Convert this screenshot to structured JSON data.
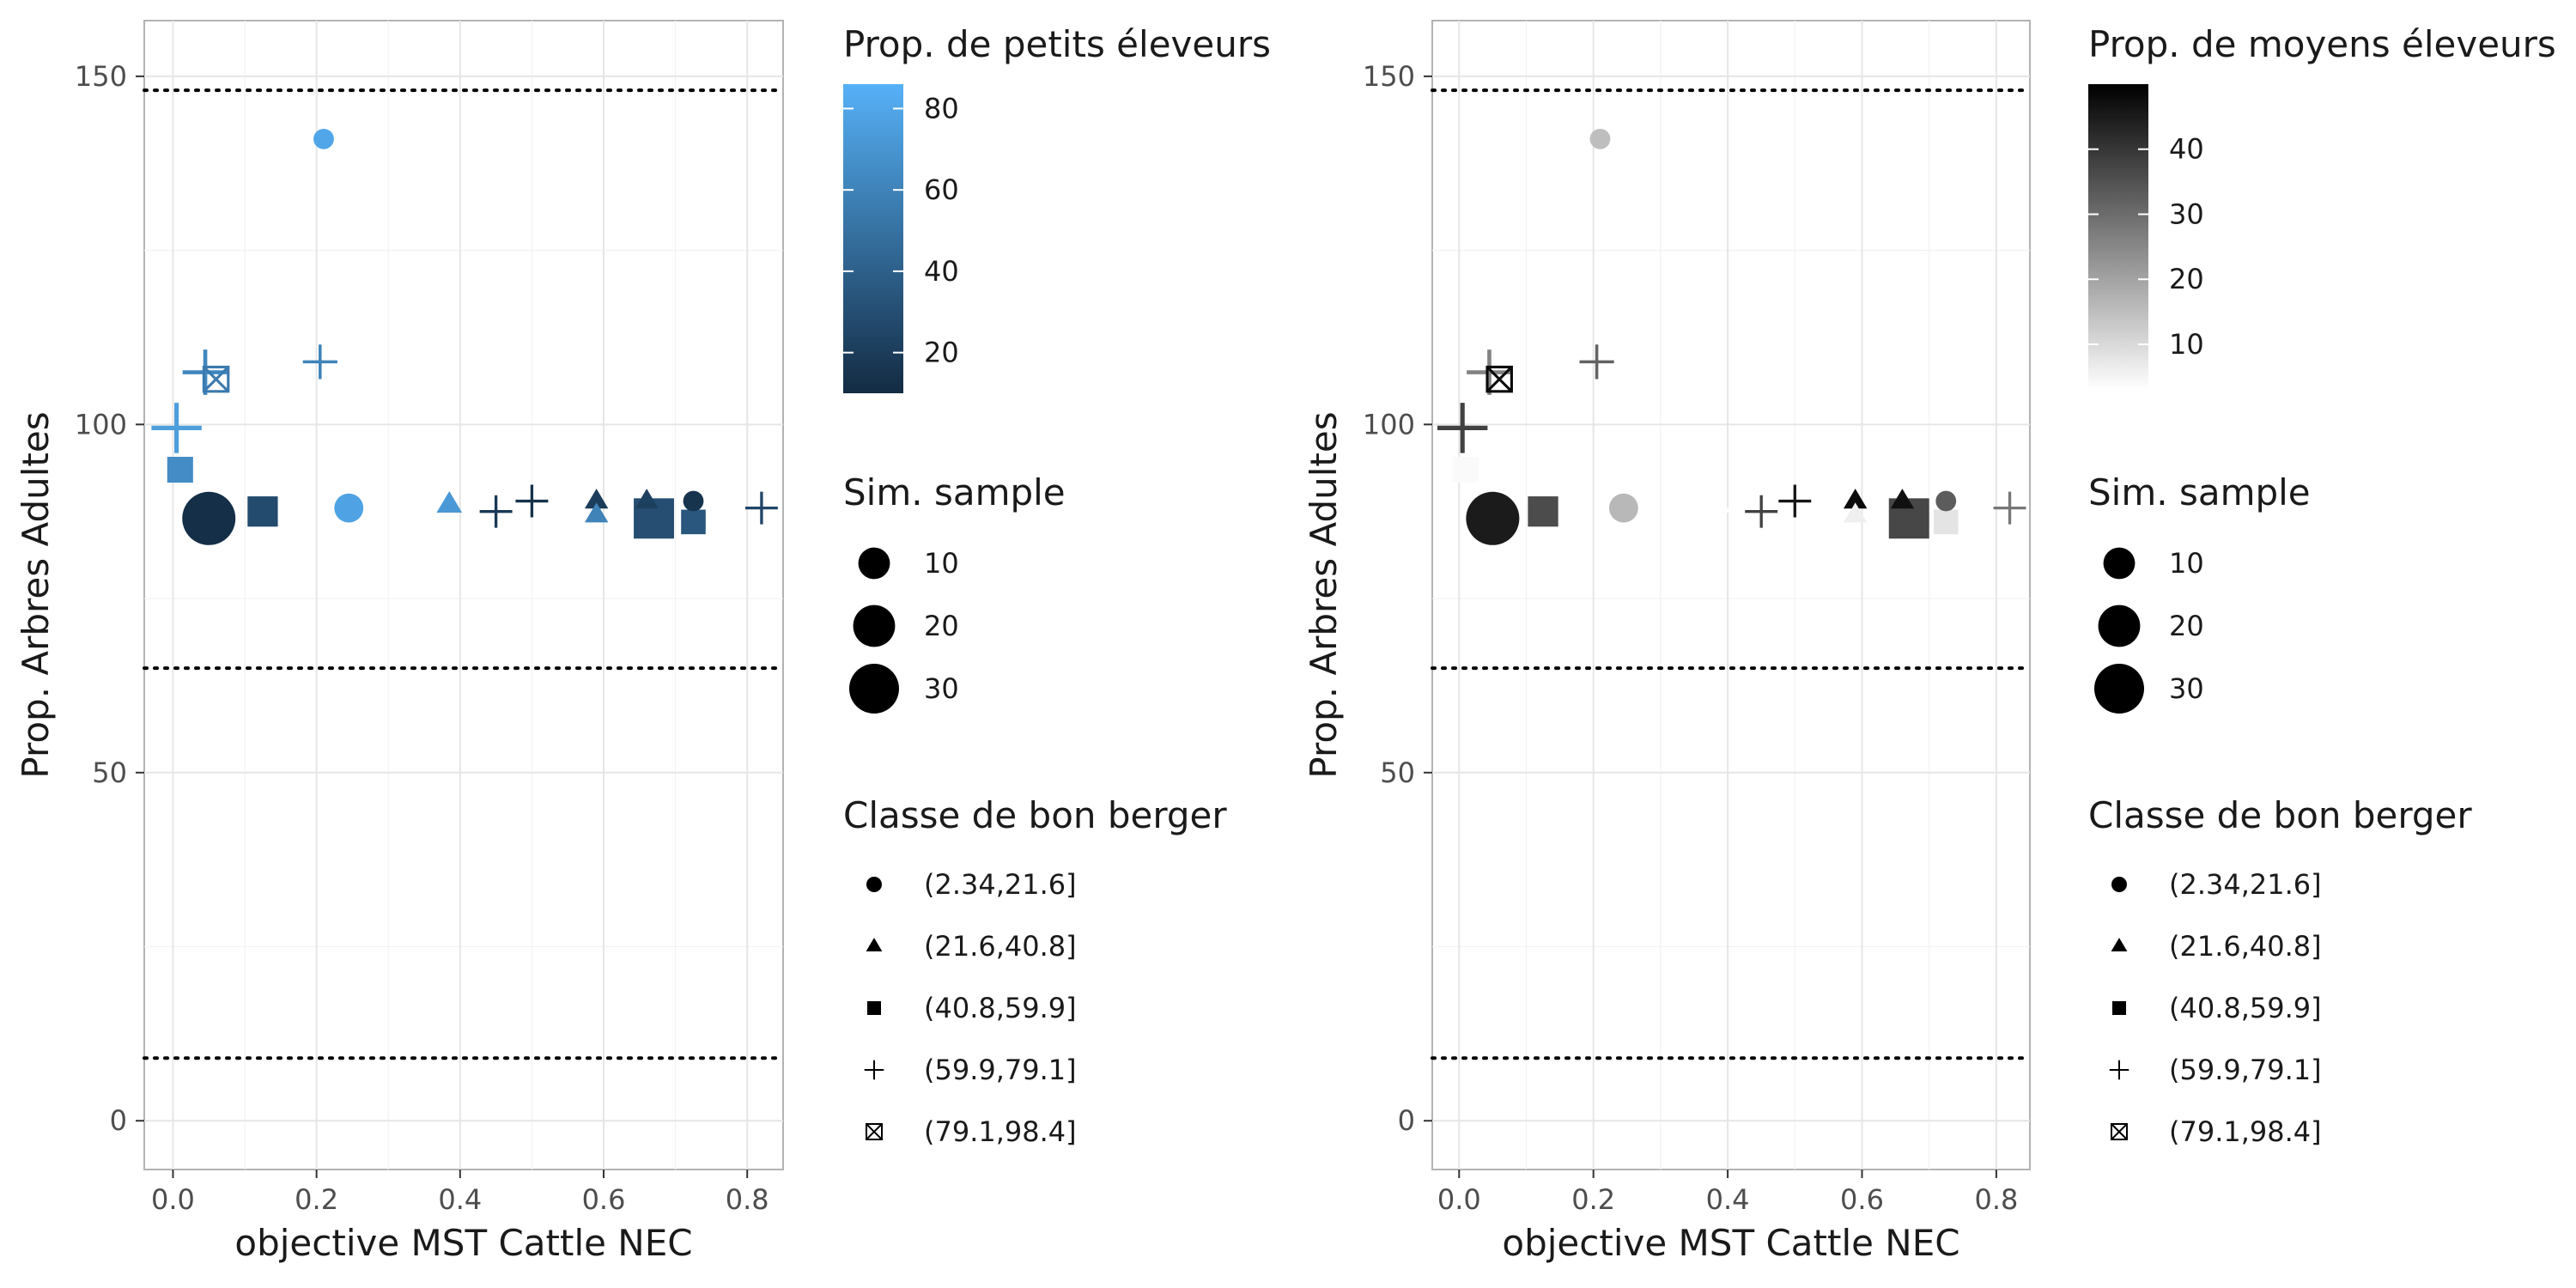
{
  "chart_data": [
    {
      "type": "scatter",
      "xlabel": "objective MST Cattle NEC",
      "ylabel": "Prop. Arbres Adultes",
      "xlim": [
        -0.04,
        0.85
      ],
      "ylim": [
        -7,
        158
      ],
      "x_ticks": [
        0.0,
        0.2,
        0.4,
        0.6,
        0.8
      ],
      "x_tick_labels": [
        "0.0",
        "0.2",
        "0.4",
        "0.6",
        "0.8"
      ],
      "y_ticks": [
        0,
        50,
        100,
        150
      ],
      "y_tick_labels": [
        "0",
        "50",
        "100",
        "150"
      ],
      "reference_lines": [
        148,
        65,
        9
      ],
      "color_legend": {
        "title": "Prop. de petits éleveurs",
        "range": [
          10,
          86
        ],
        "ticks": [
          20,
          40,
          60,
          80
        ],
        "tick_labels": [
          "20",
          "40",
          "60",
          "80"
        ],
        "colors": [
          "#132B43",
          "#56B1F7"
        ]
      },
      "size_legend": {
        "title": "Sim. sample",
        "values": [
          10,
          20,
          30
        ],
        "labels": [
          "10",
          "20",
          "30"
        ]
      },
      "shape_legend": {
        "title": "Classe de bon berger",
        "classes": [
          "circle",
          "triangle",
          "square",
          "plus",
          "boxx"
        ],
        "labels": [
          "(2.34,21.6]",
          "(21.6,40.8]",
          "(40.8,59.9]",
          "(59.9,79.1]",
          "(79.1,98.4]"
        ]
      },
      "points": [
        {
          "x": 0.005,
          "y": 99.5,
          "shape": "plus",
          "size": 18,
          "color_value": 75
        },
        {
          "x": 0.01,
          "y": 93.5,
          "shape": "square",
          "size": 8,
          "color_value": 65
        },
        {
          "x": 0.045,
          "y": 107.5,
          "shape": "plus",
          "size": 14,
          "color_value": 62
        },
        {
          "x": 0.06,
          "y": 106.5,
          "shape": "boxx",
          "size": 5,
          "color_value": 55
        },
        {
          "x": 0.05,
          "y": 86.5,
          "shape": "circle",
          "size": 35,
          "color_value": 12
        },
        {
          "x": 0.125,
          "y": 87.5,
          "shape": "square",
          "size": 12,
          "color_value": 28
        },
        {
          "x": 0.21,
          "y": 141,
          "shape": "circle",
          "size": 3,
          "color_value": 80
        },
        {
          "x": 0.205,
          "y": 109,
          "shape": "plus",
          "size": 7,
          "color_value": 60
        },
        {
          "x": 0.245,
          "y": 88,
          "shape": "circle",
          "size": 8,
          "color_value": 78
        },
        {
          "x": 0.385,
          "y": 88.5,
          "shape": "triangle",
          "size": 5,
          "color_value": 72
        },
        {
          "x": 0.45,
          "y": 87.5,
          "shape": "plus",
          "size": 6,
          "color_value": 18
        },
        {
          "x": 0.5,
          "y": 89,
          "shape": "plus",
          "size": 6,
          "color_value": 14
        },
        {
          "x": 0.59,
          "y": 89,
          "shape": "triangle",
          "size": 4,
          "color_value": 20
        },
        {
          "x": 0.59,
          "y": 87,
          "shape": "triangle",
          "size": 4,
          "color_value": 60
        },
        {
          "x": 0.66,
          "y": 89,
          "shape": "triangle",
          "size": 4,
          "color_value": 22
        },
        {
          "x": 0.67,
          "y": 86.5,
          "shape": "square",
          "size": 24,
          "color_value": 30
        },
        {
          "x": 0.725,
          "y": 86,
          "shape": "square",
          "size": 7,
          "color_value": 35
        },
        {
          "x": 0.725,
          "y": 89,
          "shape": "circle",
          "size": 3,
          "color_value": 15
        },
        {
          "x": 0.82,
          "y": 88,
          "shape": "plus",
          "size": 6,
          "color_value": 25
        }
      ]
    },
    {
      "type": "scatter",
      "xlabel": "objective MST Cattle NEC",
      "ylabel": "Prop. Arbres Adultes",
      "xlim": [
        -0.04,
        0.85
      ],
      "ylim": [
        -7,
        158
      ],
      "x_ticks": [
        0.0,
        0.2,
        0.4,
        0.6,
        0.8
      ],
      "x_tick_labels": [
        "0.0",
        "0.2",
        "0.4",
        "0.6",
        "0.8"
      ],
      "y_ticks": [
        0,
        50,
        100,
        150
      ],
      "y_tick_labels": [
        "0",
        "50",
        "100",
        "150"
      ],
      "reference_lines": [
        148,
        65,
        9
      ],
      "color_legend": {
        "title": "Prop. de moyens éleveurs",
        "range": [
          3,
          50
        ],
        "ticks": [
          10,
          20,
          30,
          40
        ],
        "tick_labels": [
          "10",
          "20",
          "30",
          "40"
        ],
        "colors": [
          "#ffffff",
          "#000000"
        ]
      },
      "size_legend": {
        "title": "Sim. sample",
        "values": [
          10,
          20,
          30
        ],
        "labels": [
          "10",
          "20",
          "30"
        ]
      },
      "shape_legend": {
        "title": "Classe de bon berger",
        "classes": [
          "circle",
          "triangle",
          "square",
          "plus",
          "boxx"
        ],
        "labels": [
          "(2.34,21.6]",
          "(21.6,40.8]",
          "(40.8,59.9]",
          "(59.9,79.1]",
          "(79.1,98.4]"
        ]
      },
      "points": [
        {
          "x": 0.005,
          "y": 99.5,
          "shape": "plus",
          "size": 18,
          "color_value": 38
        },
        {
          "x": 0.01,
          "y": 93.5,
          "shape": "square",
          "size": 8,
          "color_value": 4
        },
        {
          "x": 0.045,
          "y": 107.5,
          "shape": "plus",
          "size": 14,
          "color_value": 26
        },
        {
          "x": 0.06,
          "y": 106.5,
          "shape": "boxx",
          "size": 5,
          "color_value": 48
        },
        {
          "x": 0.05,
          "y": 86.5,
          "shape": "circle",
          "size": 35,
          "color_value": 45
        },
        {
          "x": 0.125,
          "y": 87.5,
          "shape": "square",
          "size": 12,
          "color_value": 36
        },
        {
          "x": 0.21,
          "y": 141,
          "shape": "circle",
          "size": 3,
          "color_value": 15
        },
        {
          "x": 0.205,
          "y": 109,
          "shape": "plus",
          "size": 7,
          "color_value": 32
        },
        {
          "x": 0.245,
          "y": 88,
          "shape": "circle",
          "size": 8,
          "color_value": 16
        },
        {
          "x": 0.385,
          "y": 88.5,
          "shape": "triangle",
          "size": 5,
          "color_value": 3
        },
        {
          "x": 0.45,
          "y": 87.5,
          "shape": "plus",
          "size": 6,
          "color_value": 38
        },
        {
          "x": 0.5,
          "y": 89,
          "shape": "plus",
          "size": 6,
          "color_value": 46
        },
        {
          "x": 0.59,
          "y": 89,
          "shape": "triangle",
          "size": 4,
          "color_value": 48
        },
        {
          "x": 0.59,
          "y": 87,
          "shape": "triangle",
          "size": 4,
          "color_value": 6
        },
        {
          "x": 0.66,
          "y": 89,
          "shape": "triangle",
          "size": 4,
          "color_value": 47
        },
        {
          "x": 0.67,
          "y": 86.5,
          "shape": "square",
          "size": 24,
          "color_value": 37
        },
        {
          "x": 0.725,
          "y": 86,
          "shape": "square",
          "size": 7,
          "color_value": 8
        },
        {
          "x": 0.725,
          "y": 89,
          "shape": "circle",
          "size": 3,
          "color_value": 33
        },
        {
          "x": 0.82,
          "y": 88,
          "shape": "plus",
          "size": 6,
          "color_value": 28
        }
      ]
    }
  ]
}
